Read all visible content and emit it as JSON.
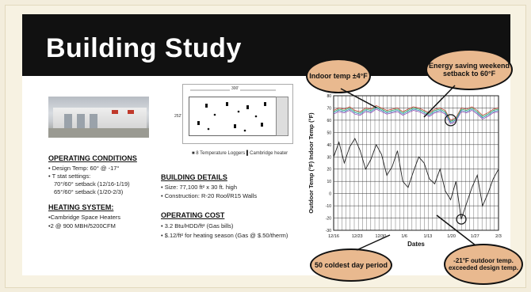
{
  "slide": {
    "title": "Building Study",
    "operating_conditions": {
      "heading": "OPERATING CONDITIONS",
      "lines": [
        "• Design Temp: 60° @ -17°",
        "• T stat settings:",
        "70°/60° setback (12/16-1/19)",
        "65°/60° setback (1/20-2/3)"
      ]
    },
    "heating_system": {
      "heading": "HEATING SYSTEM:",
      "lines": [
        "•Cambridge Space Heaters",
        "•2 @ 900 MBH/5200CFM"
      ]
    },
    "building_details": {
      "heading": "BUILDING DETAILS",
      "lines": [
        "• Size: 77,100 ft² x 30 ft. high",
        "• Construction: R-20 Roof/R15 Walls"
      ]
    },
    "operating_cost": {
      "heading": "OPERATING COST",
      "lines": [
        "• 3.2 Btu/HDD/ft² (Gas bills)",
        "• $.12/ft² for heating season (Gas @ $.50/therm)"
      ]
    },
    "floor_plan": {
      "width_label": "300'",
      "depth_label": "252'",
      "legend": "■ 8 Temperature Loggers  ▌Cambridge heater"
    },
    "callouts": {
      "indoor": "Indoor temp ±4°F",
      "setback": "Energy saving weekend setback to 60°F",
      "coldest": "50 coldest day period",
      "outdoor": "-21°F outdoor temp. exceeded design temp."
    }
  },
  "chart_data": {
    "type": "line",
    "xlabel": "Dates",
    "ylabel": "Outdoor Temp (°F) Indoor Temp (°F)",
    "x_ticks": [
      "12/16",
      "12/23",
      "12/30",
      "1/6",
      "1/13",
      "1/20",
      "1/27",
      "2/3"
    ],
    "y_ticks": [
      80,
      70,
      60,
      50,
      40,
      30,
      20,
      10,
      0,
      -10,
      -20,
      -30
    ],
    "ylim": [
      -30,
      80
    ],
    "grid": true,
    "series": [
      {
        "color": "#c0392b",
        "values": [
          68,
          70,
          69,
          71,
          68,
          67,
          70,
          69,
          72,
          70,
          68,
          69,
          70,
          67,
          69,
          71,
          70,
          68,
          66,
          69,
          70,
          68,
          60,
          62,
          70,
          69,
          71,
          68,
          64,
          66,
          69,
          70
        ]
      },
      {
        "color": "#2e86c1",
        "values": [
          66,
          68,
          67,
          69,
          66,
          65,
          68,
          67,
          70,
          68,
          66,
          67,
          68,
          65,
          67,
          69,
          68,
          66,
          64,
          67,
          68,
          66,
          58,
          60,
          68,
          67,
          69,
          66,
          62,
          64,
          67,
          68
        ]
      },
      {
        "color": "#27ae60",
        "values": [
          67,
          69,
          68,
          70,
          67,
          66,
          69,
          68,
          71,
          69,
          67,
          68,
          69,
          66,
          68,
          70,
          69,
          67,
          65,
          68,
          69,
          67,
          59,
          61,
          69,
          68,
          70,
          67,
          63,
          65,
          68,
          69
        ]
      },
      {
        "color": "#8e44ad",
        "values": [
          65,
          67,
          66,
          68,
          65,
          64,
          67,
          66,
          69,
          67,
          65,
          66,
          67,
          64,
          66,
          68,
          67,
          65,
          63,
          66,
          67,
          65,
          57,
          59,
          67,
          66,
          68,
          65,
          61,
          63,
          66,
          67
        ]
      },
      {
        "color": "#222222",
        "values": [
          30,
          42,
          25,
          38,
          45,
          35,
          20,
          28,
          40,
          32,
          15,
          22,
          35,
          10,
          5,
          18,
          30,
          25,
          12,
          8,
          20,
          2,
          -5,
          10,
          -21,
          -8,
          5,
          15,
          -10,
          0,
          12,
          20
        ]
      }
    ]
  }
}
